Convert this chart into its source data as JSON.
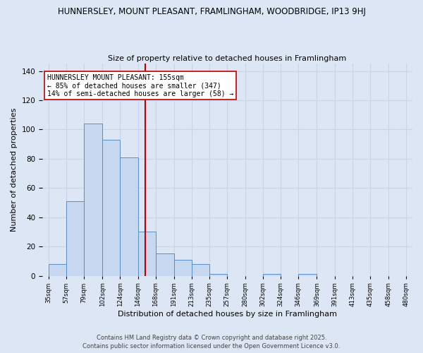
{
  "title": "HUNNERSLEY, MOUNT PLEASANT, FRAMLINGHAM, WOODBRIDGE, IP13 9HJ",
  "subtitle": "Size of property relative to detached houses in Framlingham",
  "xlabel": "Distribution of detached houses by size in Framlingham",
  "ylabel": "Number of detached properties",
  "property_size": 155,
  "annotation_line1": "HUNNERSLEY MOUNT PLEASANT: 155sqm",
  "annotation_line2": "← 85% of detached houses are smaller (347)",
  "annotation_line3": "14% of semi-detached houses are larger (58) →",
  "bar_edges": [
    35,
    57,
    79,
    102,
    124,
    146,
    168,
    191,
    213,
    235,
    257,
    280,
    302,
    324,
    346,
    369,
    391,
    413,
    435,
    458,
    480
  ],
  "bar_heights": [
    8,
    51,
    104,
    93,
    81,
    30,
    15,
    11,
    8,
    1,
    0,
    0,
    1,
    0,
    1,
    0,
    0,
    0,
    0,
    0
  ],
  "bar_color": "#c5d8ef",
  "bar_edge_color": "#5b8ec4",
  "vline_color": "#c00000",
  "grid_color": "#c8d4e8",
  "background_color": "#dce6f4",
  "annotation_box_color": "#ffffff",
  "annotation_box_edge": "#c00000",
  "ylim": [
    0,
    145
  ],
  "yticks": [
    0,
    20,
    40,
    60,
    80,
    100,
    120,
    140
  ],
  "footnote1": "Contains HM Land Registry data © Crown copyright and database right 2025.",
  "footnote2": "Contains public sector information licensed under the Open Government Licence v3.0."
}
